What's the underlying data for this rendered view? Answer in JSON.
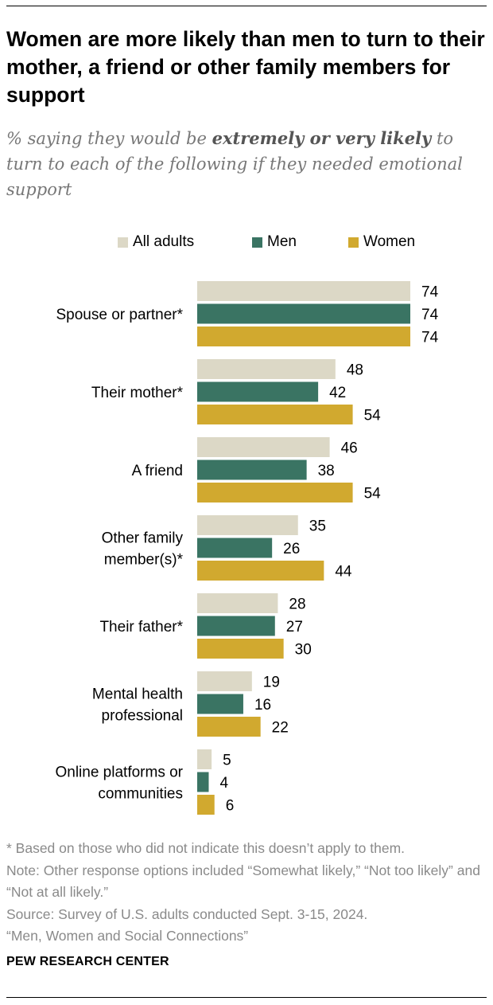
{
  "title": "Women are more likely than men to turn to their mother, a friend or other family members for support",
  "subtitle": {
    "before": "% saying they would be ",
    "emphasis": "extremely or very likely",
    "after": " to turn to each of the following if they needed emotional support"
  },
  "colors": {
    "all_adults": "#dcd8c6",
    "men": "#3a7463",
    "women": "#d1a92f"
  },
  "chart_data": {
    "type": "bar",
    "orientation": "horizontal",
    "categories": [
      [
        "Spouse or partner*"
      ],
      [
        "Their mother*"
      ],
      [
        "A friend"
      ],
      [
        "Other family",
        "member(s)*"
      ],
      [
        "Their father*"
      ],
      [
        "Mental health",
        "professional"
      ],
      [
        "Online platforms or",
        "communities"
      ]
    ],
    "series": [
      {
        "name": "All adults",
        "values": [
          74,
          48,
          46,
          35,
          28,
          19,
          5
        ]
      },
      {
        "name": "Men",
        "values": [
          74,
          42,
          38,
          26,
          27,
          16,
          4
        ]
      },
      {
        "name": "Women",
        "values": [
          74,
          54,
          54,
          44,
          30,
          22,
          6
        ]
      }
    ],
    "legend_position": "top",
    "grid": false,
    "xlim": [
      0,
      74
    ]
  },
  "notes": [
    "* Based on those who did not indicate this doesn’t apply to them.",
    "Note: Other response options included “Somewhat likely,” “Not too likely” and “Not at all likely.”",
    "Source: Survey of U.S. adults conducted Sept. 3-15, 2024.",
    "“Men, Women and Social Connections”"
  ],
  "brand": "PEW RESEARCH CENTER"
}
